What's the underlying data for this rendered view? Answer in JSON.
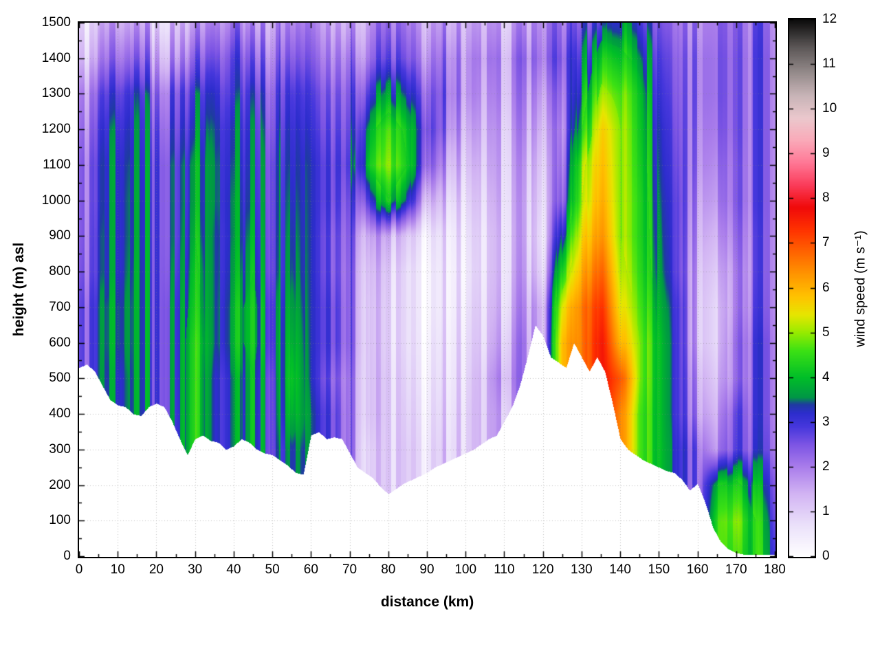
{
  "chart_data": {
    "type": "heatmap",
    "title": "",
    "xlabel": "distance (km)",
    "ylabel": "height (m) asl",
    "colorbar_label": "wind speed (m s⁻¹)",
    "xlim": [
      0,
      180
    ],
    "ylim": [
      0,
      1500
    ],
    "clim": [
      0,
      12
    ],
    "grid": "dotted",
    "legend_position": "colorbar-right",
    "xticks": [
      0,
      10,
      20,
      30,
      40,
      50,
      60,
      70,
      80,
      90,
      100,
      110,
      120,
      130,
      140,
      150,
      160,
      170,
      180
    ],
    "yticks": [
      0,
      100,
      200,
      300,
      400,
      500,
      600,
      700,
      800,
      900,
      1000,
      1100,
      1200,
      1300,
      1400,
      1500
    ],
    "cticks": [
      0,
      1,
      2,
      3,
      4,
      5,
      6,
      7,
      8,
      9,
      10,
      11,
      12
    ],
    "x": [
      0,
      5,
      10,
      15,
      20,
      25,
      30,
      35,
      40,
      45,
      50,
      55,
      60,
      65,
      70,
      75,
      80,
      85,
      90,
      95,
      100,
      105,
      110,
      115,
      120,
      125,
      130,
      135,
      140,
      145,
      150,
      155,
      160,
      165,
      170,
      175,
      180
    ],
    "y": [
      0,
      100,
      200,
      300,
      400,
      500,
      600,
      700,
      800,
      900,
      1000,
      1100,
      1200,
      1300,
      1400,
      1500
    ],
    "wind_speed": [
      [
        null,
        null,
        null,
        null,
        null,
        null,
        null,
        null,
        null,
        null,
        null,
        null,
        null,
        null,
        null,
        null,
        null,
        null,
        null,
        null,
        null,
        null,
        null,
        null,
        null,
        null,
        null,
        null,
        null,
        null,
        null,
        null,
        null,
        null,
        4.5,
        4.0,
        3.5
      ],
      [
        null,
        null,
        null,
        null,
        null,
        null,
        null,
        null,
        null,
        null,
        null,
        null,
        null,
        null,
        null,
        null,
        null,
        null,
        null,
        null,
        null,
        null,
        null,
        null,
        null,
        null,
        null,
        null,
        null,
        null,
        null,
        null,
        null,
        4.5,
        4.8,
        4.0,
        3.2
      ],
      [
        null,
        null,
        null,
        null,
        null,
        null,
        null,
        null,
        null,
        null,
        null,
        null,
        null,
        null,
        null,
        null,
        0.8,
        null,
        null,
        null,
        null,
        null,
        null,
        null,
        null,
        null,
        null,
        null,
        null,
        null,
        null,
        null,
        null,
        4.0,
        4.2,
        3.5,
        3.0
      ],
      [
        null,
        null,
        null,
        null,
        null,
        null,
        null,
        null,
        null,
        null,
        3.0,
        3.5,
        null,
        null,
        2.0,
        1.0,
        0.8,
        0.8,
        0.8,
        0.9,
        1.0,
        null,
        null,
        null,
        null,
        null,
        null,
        null,
        null,
        4.8,
        4.0,
        3.2,
        2.5,
        1.8,
        2.6,
        2.6,
        2.6
      ],
      [
        null,
        null,
        null,
        null,
        null,
        3.5,
        4.5,
        3.0,
        3.5,
        4.0,
        3.0,
        4.0,
        3.2,
        2.8,
        2.0,
        1.2,
        0.8,
        0.7,
        0.7,
        0.8,
        1.0,
        1.2,
        1.5,
        null,
        null,
        null,
        null,
        null,
        6.5,
        4.8,
        4.0,
        3.0,
        2.0,
        1.5,
        2.5,
        2.5,
        2.5
      ],
      [
        null,
        null,
        3.0,
        3.5,
        3.0,
        3.5,
        4.5,
        3.0,
        3.5,
        4.0,
        3.0,
        4.2,
        3.0,
        2.5,
        2.0,
        1.2,
        0.8,
        0.6,
        0.6,
        0.7,
        0.9,
        1.2,
        1.8,
        null,
        null,
        null,
        null,
        null,
        7.0,
        5.0,
        4.0,
        3.0,
        1.8,
        1.2,
        2.0,
        2.5,
        2.5
      ],
      [
        2.5,
        3.0,
        3.2,
        3.5,
        3.0,
        3.5,
        4.5,
        3.2,
        3.8,
        4.2,
        3.2,
        4.0,
        3.0,
        2.8,
        2.2,
        1.2,
        0.7,
        0.5,
        0.5,
        0.6,
        0.8,
        1.0,
        1.5,
        2.0,
        null,
        6.0,
        6.5,
        7.8,
        6.0,
        5.0,
        4.0,
        3.0,
        1.5,
        1.0,
        2.0,
        2.5,
        2.5
      ],
      [
        2.5,
        3.0,
        3.2,
        3.5,
        3.0,
        3.5,
        4.3,
        3.2,
        3.8,
        4.2,
        3.2,
        3.8,
        3.0,
        2.8,
        2.2,
        1.2,
        0.7,
        0.5,
        0.4,
        0.5,
        0.7,
        0.9,
        1.3,
        1.8,
        1.5,
        5.5,
        6.5,
        7.5,
        5.5,
        4.8,
        3.8,
        3.0,
        1.5,
        1.0,
        1.8,
        2.3,
        2.4
      ],
      [
        2.3,
        2.8,
        3.0,
        3.5,
        3.0,
        3.3,
        4.2,
        3.2,
        3.6,
        4.0,
        3.0,
        3.6,
        3.0,
        2.6,
        2.2,
        1.3,
        0.8,
        0.5,
        0.4,
        0.5,
        0.6,
        0.8,
        1.2,
        1.6,
        1.0,
        4.5,
        6.0,
        7.0,
        5.2,
        4.6,
        3.6,
        2.8,
        1.6,
        1.2,
        1.8,
        2.2,
        2.4
      ],
      [
        2.2,
        2.8,
        3.0,
        3.4,
        3.0,
        3.2,
        4.0,
        3.2,
        3.5,
        3.8,
        3.0,
        3.5,
        3.0,
        2.6,
        2.3,
        1.6,
        1.2,
        0.8,
        0.6,
        0.6,
        0.7,
        0.8,
        1.2,
        1.5,
        0.8,
        3.5,
        5.5,
        6.5,
        5.0,
        4.5,
        3.5,
        2.8,
        1.8,
        1.5,
        2.0,
        2.2,
        2.4
      ],
      [
        2.2,
        2.7,
        3.0,
        3.4,
        3.0,
        3.2,
        3.8,
        3.3,
        3.5,
        3.6,
        3.0,
        3.4,
        3.0,
        2.8,
        2.5,
        3.0,
        4.0,
        3.0,
        1.5,
        1.0,
        0.9,
        1.0,
        1.3,
        1.5,
        1.0,
        2.5,
        5.0,
        6.2,
        5.0,
        4.5,
        3.4,
        2.8,
        2.0,
        1.8,
        2.2,
        2.3,
        2.4
      ],
      [
        2.2,
        2.7,
        3.0,
        3.3,
        3.0,
        3.2,
        3.8,
        3.3,
        3.4,
        3.5,
        3.0,
        3.3,
        3.0,
        2.8,
        2.8,
        4.2,
        4.8,
        4.0,
        2.5,
        1.5,
        1.2,
        1.2,
        1.4,
        1.6,
        1.2,
        2.2,
        4.8,
        6.0,
        5.0,
        4.4,
        3.3,
        2.7,
        2.2,
        2.0,
        2.2,
        2.3,
        2.4
      ],
      [
        2.0,
        2.5,
        2.8,
        3.2,
        2.8,
        3.0,
        3.5,
        3.2,
        3.3,
        3.4,
        2.8,
        3.2,
        2.8,
        2.6,
        2.6,
        3.8,
        4.5,
        3.8,
        2.8,
        2.0,
        1.5,
        1.4,
        1.5,
        1.8,
        1.5,
        2.0,
        4.0,
        5.8,
        5.0,
        4.3,
        3.2,
        2.6,
        2.3,
        2.2,
        2.3,
        2.3,
        2.4
      ],
      [
        1.8,
        2.2,
        2.5,
        3.0,
        2.5,
        2.8,
        3.2,
        3.0,
        3.0,
        3.2,
        2.6,
        3.0,
        2.6,
        2.4,
        2.4,
        3.0,
        3.5,
        3.0,
        2.5,
        2.2,
        1.8,
        1.6,
        1.7,
        2.0,
        1.8,
        2.2,
        3.5,
        5.2,
        4.8,
        4.2,
        3.0,
        2.5,
        2.4,
        2.3,
        2.3,
        2.3,
        2.4
      ],
      [
        1.2,
        1.5,
        1.8,
        2.2,
        1.8,
        2.0,
        2.5,
        2.4,
        2.8,
        2.6,
        2.2,
        2.5,
        2.2,
        2.0,
        2.0,
        2.2,
        2.5,
        2.2,
        2.0,
        2.0,
        1.8,
        1.8,
        1.8,
        2.2,
        2.2,
        2.5,
        3.0,
        4.5,
        4.2,
        3.8,
        2.8,
        2.4,
        2.4,
        2.3,
        2.3,
        2.3,
        2.4
      ],
      [
        0.8,
        1.0,
        1.2,
        1.5,
        1.2,
        1.5,
        1.8,
        1.8,
        2.2,
        2.0,
        1.8,
        2.0,
        1.8,
        1.6,
        1.5,
        1.8,
        2.0,
        1.8,
        1.6,
        1.6,
        1.5,
        1.5,
        1.5,
        1.8,
        2.0,
        2.2,
        2.5,
        3.5,
        3.5,
        3.2,
        2.5,
        2.2,
        2.2,
        2.2,
        2.2,
        2.2,
        2.3
      ]
    ],
    "terrain_profile": [
      [
        0,
        530
      ],
      [
        2,
        540
      ],
      [
        4,
        520
      ],
      [
        6,
        480
      ],
      [
        8,
        440
      ],
      [
        10,
        425
      ],
      [
        12,
        420
      ],
      [
        14,
        400
      ],
      [
        16,
        395
      ],
      [
        18,
        420
      ],
      [
        20,
        430
      ],
      [
        22,
        420
      ],
      [
        24,
        380
      ],
      [
        26,
        330
      ],
      [
        28,
        285
      ],
      [
        30,
        330
      ],
      [
        32,
        340
      ],
      [
        34,
        325
      ],
      [
        36,
        320
      ],
      [
        38,
        300
      ],
      [
        40,
        310
      ],
      [
        42,
        330
      ],
      [
        44,
        320
      ],
      [
        46,
        300
      ],
      [
        48,
        290
      ],
      [
        50,
        285
      ],
      [
        52,
        270
      ],
      [
        54,
        255
      ],
      [
        56,
        235
      ],
      [
        58,
        230
      ],
      [
        60,
        340
      ],
      [
        62,
        350
      ],
      [
        64,
        330
      ],
      [
        66,
        335
      ],
      [
        68,
        330
      ],
      [
        70,
        290
      ],
      [
        72,
        250
      ],
      [
        74,
        235
      ],
      [
        76,
        220
      ],
      [
        78,
        195
      ],
      [
        80,
        175
      ],
      [
        82,
        190
      ],
      [
        84,
        205
      ],
      [
        86,
        215
      ],
      [
        88,
        225
      ],
      [
        90,
        235
      ],
      [
        92,
        250
      ],
      [
        94,
        260
      ],
      [
        96,
        270
      ],
      [
        98,
        280
      ],
      [
        100,
        290
      ],
      [
        102,
        300
      ],
      [
        104,
        315
      ],
      [
        106,
        330
      ],
      [
        108,
        340
      ],
      [
        110,
        380
      ],
      [
        112,
        420
      ],
      [
        114,
        480
      ],
      [
        116,
        560
      ],
      [
        118,
        650
      ],
      [
        120,
        620
      ],
      [
        122,
        560
      ],
      [
        124,
        545
      ],
      [
        126,
        530
      ],
      [
        128,
        600
      ],
      [
        130,
        560
      ],
      [
        132,
        520
      ],
      [
        134,
        560
      ],
      [
        136,
        520
      ],
      [
        138,
        430
      ],
      [
        140,
        330
      ],
      [
        142,
        300
      ],
      [
        144,
        285
      ],
      [
        146,
        270
      ],
      [
        148,
        260
      ],
      [
        150,
        250
      ],
      [
        152,
        240
      ],
      [
        154,
        235
      ],
      [
        156,
        215
      ],
      [
        158,
        185
      ],
      [
        160,
        205
      ],
      [
        162,
        150
      ],
      [
        164,
        80
      ],
      [
        166,
        40
      ],
      [
        168,
        20
      ],
      [
        170,
        10
      ],
      [
        172,
        5
      ],
      [
        174,
        5
      ],
      [
        176,
        5
      ],
      [
        178,
        5
      ],
      [
        180,
        5
      ]
    ],
    "palette": [
      {
        "v": 0.0,
        "c": "#ffffff"
      },
      {
        "v": 0.7,
        "c": "#ebe1fa"
      },
      {
        "v": 1.4,
        "c": "#d2b4f3"
      },
      {
        "v": 2.0,
        "c": "#aa7deb"
      },
      {
        "v": 2.5,
        "c": "#7d55e4"
      },
      {
        "v": 2.9,
        "c": "#4637dc"
      },
      {
        "v": 3.2,
        "c": "#2d2dcd"
      },
      {
        "v": 3.4,
        "c": "#1e3ca0"
      },
      {
        "v": 3.55,
        "c": "#009646"
      },
      {
        "v": 4.0,
        "c": "#00be28"
      },
      {
        "v": 4.6,
        "c": "#3ce114"
      },
      {
        "v": 5.0,
        "c": "#96eb00"
      },
      {
        "v": 5.4,
        "c": "#e6e600"
      },
      {
        "v": 5.8,
        "c": "#ffc300"
      },
      {
        "v": 6.3,
        "c": "#ff9600"
      },
      {
        "v": 6.8,
        "c": "#ff6400"
      },
      {
        "v": 7.3,
        "c": "#ff3200"
      },
      {
        "v": 7.8,
        "c": "#f00a0a"
      },
      {
        "v": 8.3,
        "c": "#fa3c5a"
      },
      {
        "v": 8.8,
        "c": "#ff7896"
      },
      {
        "v": 9.3,
        "c": "#faaab9"
      },
      {
        "v": 9.8,
        "c": "#ebc8cd"
      },
      {
        "v": 10.3,
        "c": "#c8b4b7"
      },
      {
        "v": 10.8,
        "c": "#968c8c"
      },
      {
        "v": 11.4,
        "c": "#5a5555"
      },
      {
        "v": 12.0,
        "c": "#0a0a0a"
      }
    ],
    "style": {
      "background": "#ffffff",
      "frame_color": "#000000",
      "grid_color": "#9a9a9a",
      "terrain_fill": "#ffffff",
      "vertical_striping": true,
      "stripe_amplitude": 0.55,
      "stripe_width_km": 1.3
    }
  }
}
